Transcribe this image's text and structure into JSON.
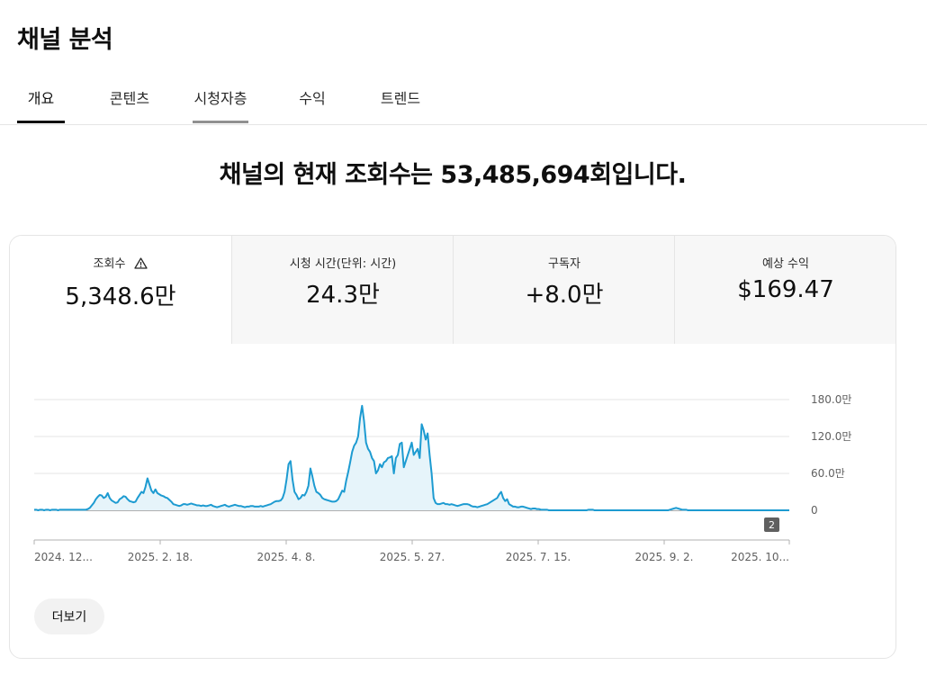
{
  "header": {
    "title": "채널 분석"
  },
  "tabs": [
    {
      "label": "개요",
      "active": true
    },
    {
      "label": "콘텐츠",
      "active": false
    },
    {
      "label": "시청자층",
      "active": false
    },
    {
      "label": "수익",
      "active": false
    },
    {
      "label": "트렌드",
      "active": false
    }
  ],
  "headline": "채널의 현재 조회수는 53,485,694회입니다.",
  "metrics": [
    {
      "label": "조회수",
      "value": "5,348.6만",
      "selected": true,
      "icon": "warning-icon"
    },
    {
      "label": "시청 시간(단위: 시간)",
      "value": "24.3만",
      "selected": false
    },
    {
      "label": "구독자",
      "value": "+8.0만",
      "selected": false
    },
    {
      "label": "예상 수익",
      "value": "$169.47",
      "selected": false
    }
  ],
  "chart_data": {
    "type": "area",
    "y_unit": "views (만)",
    "y_ticks": [
      {
        "value": 0,
        "label": "0"
      },
      {
        "value": 60,
        "label": "60.0만"
      },
      {
        "value": 120,
        "label": "120.0만"
      },
      {
        "value": 180,
        "label": "180.0만"
      }
    ],
    "ylim": [
      0,
      180
    ],
    "x_tick_labels": [
      "2024. 12...",
      "2025. 2. 18.",
      "2025. 4. 8.",
      "2025. 5. 27.",
      "2025. 7. 15.",
      "2025. 9. 2.",
      "2025. 10..."
    ],
    "annotation_badge": "2",
    "grid": true,
    "colors": {
      "line": "#1d9bd1",
      "fill": "#e6f4fa"
    },
    "series": [
      {
        "values": [
          1,
          1,
          0,
          1,
          1,
          0,
          1,
          1,
          0,
          1,
          1,
          1,
          0,
          1,
          1,
          1,
          1,
          1,
          1,
          1,
          1,
          1,
          1,
          1,
          1,
          1,
          1,
          2,
          4,
          8,
          12,
          18,
          22,
          25,
          24,
          20,
          22,
          28,
          20,
          16,
          14,
          12,
          13,
          18,
          20,
          23,
          22,
          18,
          15,
          14,
          13,
          14,
          20,
          25,
          30,
          28,
          38,
          52,
          42,
          32,
          28,
          34,
          28,
          26,
          24,
          23,
          21,
          20,
          17,
          14,
          10,
          9,
          8,
          7,
          8,
          10,
          10,
          9,
          10,
          11,
          10,
          9,
          8,
          8,
          7,
          8,
          7,
          7,
          8,
          9,
          7,
          6,
          5,
          6,
          7,
          8,
          9,
          7,
          6,
          7,
          8,
          9,
          8,
          7,
          7,
          6,
          5,
          6,
          6,
          7,
          7,
          6,
          6,
          6,
          7,
          6,
          7,
          8,
          9,
          10,
          12,
          14,
          15,
          15,
          16,
          20,
          30,
          50,
          75,
          80,
          50,
          30,
          25,
          18,
          20,
          25,
          24,
          30,
          40,
          68,
          55,
          40,
          30,
          28,
          25,
          20,
          18,
          17,
          16,
          15,
          14,
          14,
          15,
          18,
          25,
          32,
          30,
          48,
          62,
          78,
          95,
          105,
          110,
          120,
          150,
          170,
          145,
          110,
          100,
          95,
          85,
          80,
          60,
          65,
          75,
          70,
          78,
          80,
          85,
          86,
          88,
          60,
          85,
          90,
          108,
          110,
          70,
          80,
          90,
          100,
          110,
          90,
          95,
          100,
          85,
          140,
          130,
          115,
          125,
          90,
          60,
          20,
          12,
          10,
          10,
          11,
          12,
          10,
          10,
          9,
          10,
          9,
          8,
          7,
          8,
          9,
          10,
          10,
          10,
          9,
          7,
          6,
          6,
          5,
          6,
          7,
          8,
          9,
          10,
          12,
          14,
          16,
          18,
          20,
          26,
          30,
          20,
          15,
          18,
          10,
          8,
          6,
          6,
          5,
          5,
          6,
          6,
          5,
          4,
          3,
          2,
          3,
          3,
          2,
          2,
          1,
          1,
          1,
          1,
          0,
          0,
          0,
          0,
          0,
          0,
          0,
          0,
          0,
          0,
          0,
          0,
          0,
          0,
          0,
          0,
          0,
          0,
          0,
          0,
          1,
          1,
          1,
          0,
          0,
          0,
          0,
          0,
          0,
          0,
          0,
          0,
          0,
          0,
          0,
          0,
          0,
          0,
          0,
          0,
          0,
          0,
          0,
          0,
          0,
          0,
          0,
          0,
          0,
          0,
          0,
          0,
          0,
          0,
          0,
          0,
          0,
          0,
          0,
          0,
          0,
          1,
          2,
          3,
          4,
          3,
          2,
          1,
          1,
          1,
          0,
          0,
          0,
          0,
          0,
          0,
          0,
          0,
          0,
          0,
          0,
          0,
          0,
          0,
          0,
          0,
          0,
          0,
          0,
          0,
          0,
          0,
          0,
          0,
          0,
          0,
          0,
          0,
          0,
          0,
          0,
          0,
          0,
          0,
          0,
          0,
          0,
          0,
          0,
          0,
          0,
          0,
          0,
          0,
          0,
          0,
          0,
          0,
          0,
          0,
          0,
          0
        ]
      }
    ]
  },
  "footer": {
    "more_label": "더보기"
  }
}
